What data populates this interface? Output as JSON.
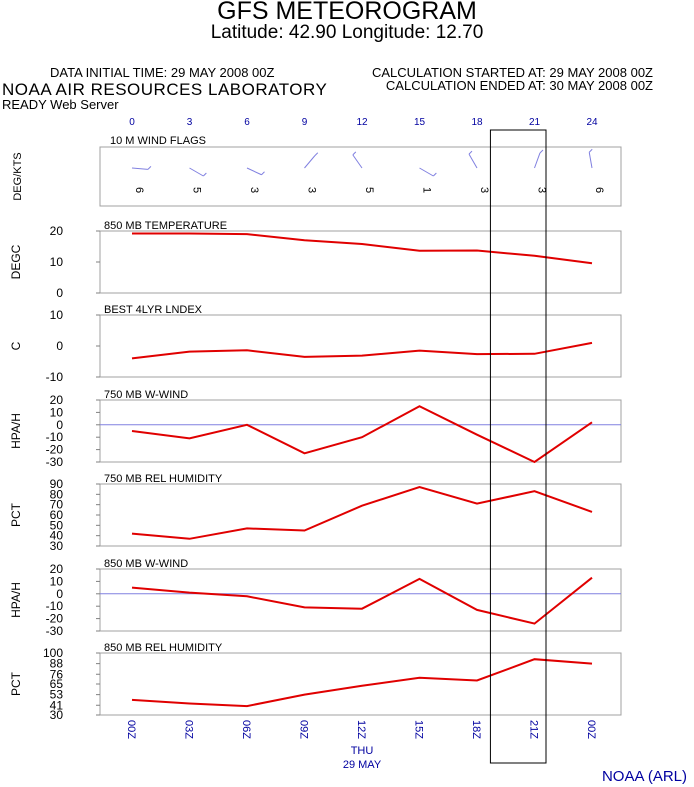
{
  "header": {
    "title": "GFS METEOROGRAM",
    "latlon": "Latitude: 42.90 Longitude:  12.70",
    "init_time": "DATA INITIAL TIME: 29 MAY 2008 00Z",
    "lab": "NOAA AIR RESOURCES LABORATORY",
    "server": "READY Web Server",
    "calc_start": "CALCULATION STARTED AT: 29 MAY 2008 00Z",
    "calc_end": "CALCULATION ENDED AT: 30 MAY 2008 00Z"
  },
  "footer": {
    "credit": "NOAA (ARL)"
  },
  "colors": {
    "line": "#e00000",
    "tick_label": "#0000a0",
    "zero_line": "#8080e0"
  },
  "chart_data": {
    "type": "line",
    "top_axis_hours": [
      "0",
      "3",
      "6",
      "9",
      "12",
      "15",
      "18",
      "21",
      "24"
    ],
    "x_labels": [
      "00Z",
      "03Z",
      "06Z",
      "09Z",
      "12Z",
      "15Z",
      "18Z",
      "21Z",
      "00Z"
    ],
    "day_label": "THU",
    "date_label": "29 MAY",
    "highlight_range": [
      18.7,
      21.6
    ],
    "wind_flags": {
      "title": "10 M  WIND FLAGS",
      "ylabel": "DEG/KTS",
      "speeds": [
        "6",
        "5",
        "3",
        "3",
        "5",
        "1",
        "3",
        "3",
        "6"
      ],
      "directions_deg": [
        265,
        240,
        245,
        320,
        35,
        240,
        30,
        340,
        10
      ]
    },
    "panels": [
      {
        "key": "t850",
        "title": "850 MB  TEMPERATURE",
        "ylabel": "DEGC",
        "ylim": [
          0,
          20
        ],
        "ticks": [
          "0",
          "10",
          "20"
        ],
        "zero_line": false,
        "values": [
          19.2,
          19.2,
          19.0,
          17.0,
          15.8,
          13.6,
          13.7,
          12.0,
          9.6
        ]
      },
      {
        "key": "lindex",
        "title": "BEST 4LYR LNDEX",
        "ylabel": "C",
        "ylim": [
          -10,
          10
        ],
        "ticks": [
          "-10",
          "0",
          "10"
        ],
        "zero_line": false,
        "values": [
          -4.0,
          -1.8,
          -1.4,
          -3.5,
          -3.1,
          -1.5,
          -2.6,
          -2.5,
          1.0
        ]
      },
      {
        "key": "w750",
        "title": "750 MB  W-WIND",
        "ylabel": "HPA/H",
        "ylim": [
          -30,
          20
        ],
        "ticks": [
          "-30",
          "-20",
          "-10",
          "0",
          "10",
          "20"
        ],
        "zero_line": true,
        "values": [
          -5.0,
          -11.0,
          0.0,
          -23.0,
          -10.0,
          15.0,
          -8.0,
          -30.0,
          2.0
        ]
      },
      {
        "key": "rh750",
        "title": "750 MB  REL HUMIDITY",
        "ylabel": "PCT",
        "ylim": [
          30,
          90
        ],
        "ticks": [
          "30",
          "40",
          "50",
          "60",
          "70",
          "80",
          "90"
        ],
        "zero_line": false,
        "values": [
          42.0,
          37.0,
          47.0,
          45.0,
          69.0,
          87.0,
          71.0,
          83.0,
          63.0
        ]
      },
      {
        "key": "w850",
        "title": "850 MB  W-WIND",
        "ylabel": "HPA/H",
        "ylim": [
          -30,
          20
        ],
        "ticks": [
          "-30",
          "-20",
          "-10",
          "0",
          "10",
          "20"
        ],
        "zero_line": true,
        "values": [
          5.0,
          1.0,
          -2.0,
          -11.0,
          -12.0,
          12.0,
          -13.0,
          -24.0,
          13.0
        ]
      },
      {
        "key": "rh850",
        "title": "850 MB  REL HUMIDITY",
        "ylabel": "PCT",
        "ylim": [
          30,
          100
        ],
        "ticks": [
          "30",
          "41",
          "53",
          "65",
          "76",
          "88",
          "100"
        ],
        "zero_line": false,
        "values": [
          47.0,
          43.0,
          40.0,
          53.0,
          63.0,
          72.0,
          69.0,
          93.0,
          88.0
        ]
      }
    ]
  }
}
